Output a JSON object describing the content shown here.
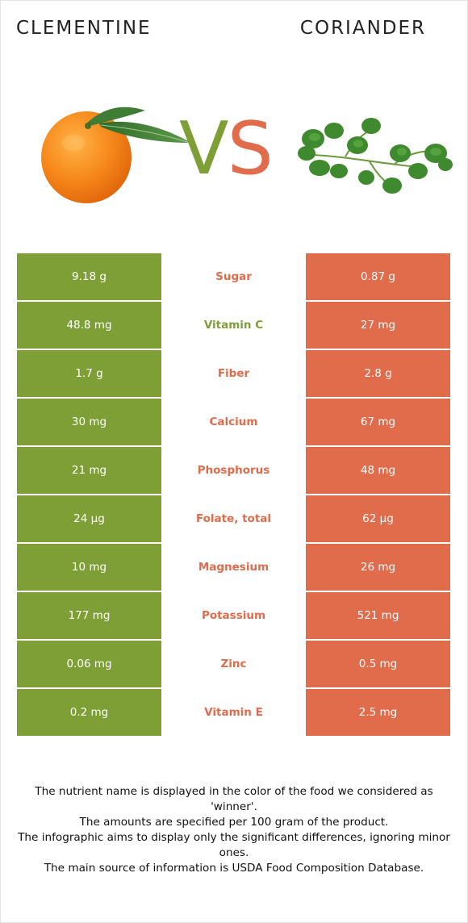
{
  "header": {
    "left_food": "CLEMENTINE",
    "right_food": "CORIANDER",
    "vs_v": "V",
    "vs_s": "S"
  },
  "colors": {
    "left": "#7d9f35",
    "right": "#e06c4c"
  },
  "chart_data": {
    "type": "table",
    "columns": [
      "CLEMENTINE",
      "",
      "CORIANDER"
    ],
    "rows": [
      {
        "nutrient": "Sugar",
        "left": "9.18 g",
        "right": "0.87 g",
        "winner": "right"
      },
      {
        "nutrient": "Vitamin C",
        "left": "48.8 mg",
        "right": "27 mg",
        "winner": "left"
      },
      {
        "nutrient": "Fiber",
        "left": "1.7 g",
        "right": "2.8 g",
        "winner": "right"
      },
      {
        "nutrient": "Calcium",
        "left": "30 mg",
        "right": "67 mg",
        "winner": "right"
      },
      {
        "nutrient": "Phosphorus",
        "left": "21 mg",
        "right": "48 mg",
        "winner": "right"
      },
      {
        "nutrient": "Folate, total",
        "left": "24 µg",
        "right": "62 µg",
        "winner": "right"
      },
      {
        "nutrient": "Magnesium",
        "left": "10 mg",
        "right": "26 mg",
        "winner": "right"
      },
      {
        "nutrient": "Potassium",
        "left": "177 mg",
        "right": "521 mg",
        "winner": "right"
      },
      {
        "nutrient": "Zinc",
        "left": "0.06 mg",
        "right": "0.5 mg",
        "winner": "right"
      },
      {
        "nutrient": "Vitamin E",
        "left": "0.2 mg",
        "right": "2.5 mg",
        "winner": "right"
      }
    ]
  },
  "footer": {
    "lines": [
      "The nutrient name is displayed in the color of the food we considered as 'winner'.",
      "The amounts are specified per 100 gram of the product.",
      "The infographic aims to display only the significant differences, ignoring minor ones.",
      "The main source of information is USDA Food Composition Database."
    ]
  }
}
